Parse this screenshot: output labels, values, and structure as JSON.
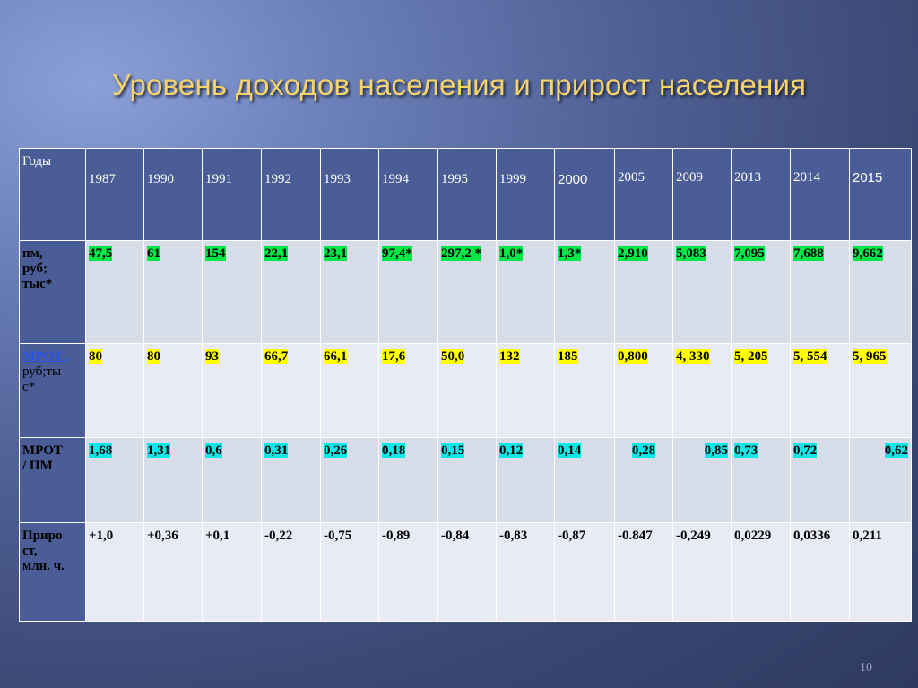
{
  "slide": {
    "title": "Уровень доходов населения и прирост населения",
    "page_number": "10"
  },
  "table": {
    "header_label": "Годы",
    "years": [
      "1987",
      "1990",
      "1991",
      "1992",
      "1993",
      "1994",
      "1995",
      "1999",
      "2000",
      "2005",
      "2009",
      "2013",
      "2014",
      "2015"
    ],
    "rows": [
      {
        "label_lines": [
          "пм,",
          "руб;",
          "тыс*"
        ],
        "values": [
          "47,5",
          "61",
          "154",
          "22,1",
          "23,1",
          "97,4*",
          "297,2 *",
          "1,0*",
          "1,3*",
          "2,910",
          "5,083",
          "7,095",
          "7,688",
          "9,662"
        ]
      },
      {
        "label_link": "МРОТ ,",
        "label_lines": [
          "руб;ты",
          "с*"
        ],
        "values": [
          "80",
          "80",
          "93",
          "66,7",
          "66,1",
          "17,6",
          "50,0",
          "132",
          "185",
          "0,800",
          "4, 330",
          "5, 205",
          "5, 554",
          "5, 965"
        ]
      },
      {
        "label_lines": [
          "МРОТ",
          "/ ПМ"
        ],
        "values": [
          "1,68",
          "1,31",
          "0,6",
          "0,31",
          "0,26",
          "0,18",
          "0,15",
          "0,12",
          "0,14",
          "0,28",
          "0,85",
          "0,73",
          "0,72",
          "0,62"
        ]
      },
      {
        "label_lines": [
          "Приро",
          "ст,",
          "млн. ч."
        ],
        "values": [
          "+1,0",
          "+0,36",
          "+0,1",
          "-0,22",
          "-0,75",
          "-0,89",
          "-0,84",
          "-0,83",
          "-0,87",
          "-0.847",
          "-0,249",
          "0,0229",
          "0,0336",
          "0,211"
        ]
      }
    ]
  },
  "colors": {
    "highlight_green": "#00e848",
    "highlight_yellow": "#ffff00",
    "highlight_cyan": "#10e8e8",
    "header_blue": "#4a5d96",
    "title_gold": "#f4d36a"
  }
}
